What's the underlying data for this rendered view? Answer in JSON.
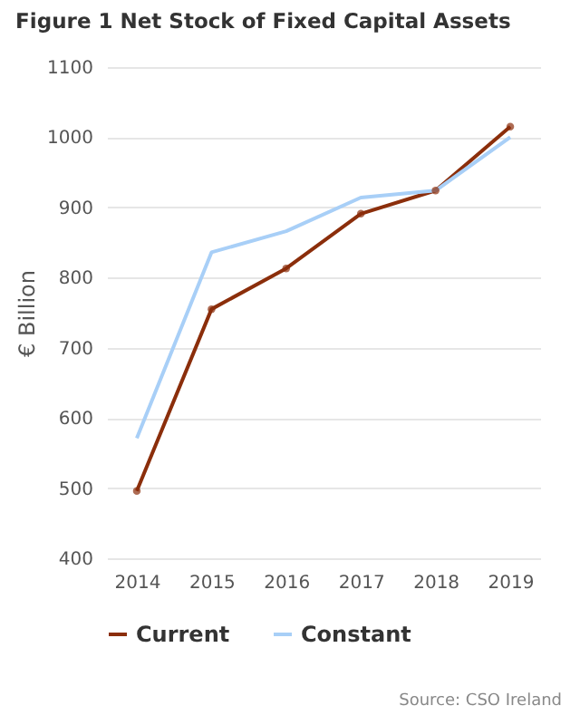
{
  "chart_data": {
    "type": "line",
    "title": "Figure 1 Net Stock of Fixed Capital Assets",
    "ylabel": "€ Billion",
    "categories": [
      "2014",
      "2015",
      "2016",
      "2017",
      "2018",
      "2019"
    ],
    "series": [
      {
        "name": "Current",
        "color": "#8b2e0b",
        "marker": "circle",
        "values": [
          496,
          755,
          813,
          891,
          924,
          1015
        ]
      },
      {
        "name": "Constant",
        "color": "#a8cff7",
        "marker": "none",
        "values": [
          571,
          836,
          866,
          914,
          924,
          1000
        ]
      }
    ],
    "ylim": [
      400,
      1100
    ],
    "yticks": [
      400,
      500,
      600,
      700,
      800,
      900,
      1000,
      1100
    ],
    "grid": "y",
    "legend": "bottom",
    "line_style": "solid",
    "annotations": [
      "Source: CSO Ireland"
    ]
  }
}
